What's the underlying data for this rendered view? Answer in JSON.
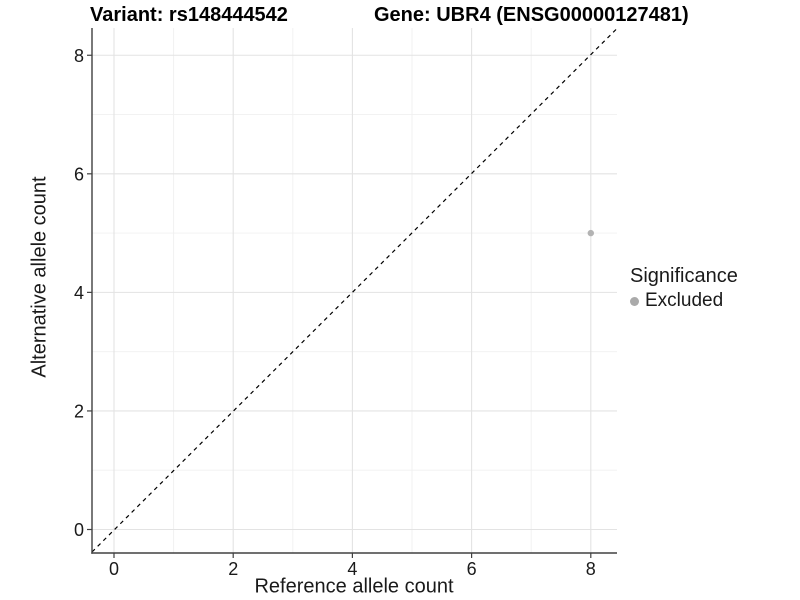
{
  "figure": {
    "titles": {
      "variant": "Variant: rs148444542",
      "gene": "Gene: UBR4 (ENSG00000127481)"
    }
  },
  "chart_data": {
    "type": "scatter",
    "title": "Variant: rs148444542 | Gene: UBR4 (ENSG00000127481)",
    "xlabel": "Reference allele count",
    "ylabel": "Alternative allele count",
    "xlim": [
      -0.45,
      8.45
    ],
    "ylim": [
      -0.45,
      8.45
    ],
    "x_ticks": [
      "0",
      "2",
      "4",
      "6",
      "8"
    ],
    "x_tick_values": [
      0,
      2,
      4,
      6,
      8
    ],
    "y_ticks": [
      "0",
      "2",
      "4",
      "6",
      "8"
    ],
    "y_tick_values": [
      0,
      2,
      4,
      6,
      8
    ],
    "minor_tick_values": [
      1,
      3,
      5,
      7
    ],
    "grid": true,
    "reference_line": {
      "type": "identity",
      "slope": 1,
      "intercept": 0,
      "style": "dashed",
      "color": "#000000"
    },
    "points": [
      {
        "x": 8,
        "y": 5,
        "series": "Excluded",
        "color": "#b3b3b3"
      }
    ],
    "legend": {
      "title": "Significance",
      "position": "right",
      "entries": [
        {
          "label": "Excluded",
          "color": "#aaaaaa"
        }
      ]
    }
  },
  "colors": {
    "background": "#ffffff",
    "grid_major": "#e3e3e3",
    "grid_minor": "#f0f0f0",
    "axis_line": "#404040",
    "axis_text": "#1a1a1a",
    "point": "#b3b3b3",
    "reference_line": "#000000"
  }
}
